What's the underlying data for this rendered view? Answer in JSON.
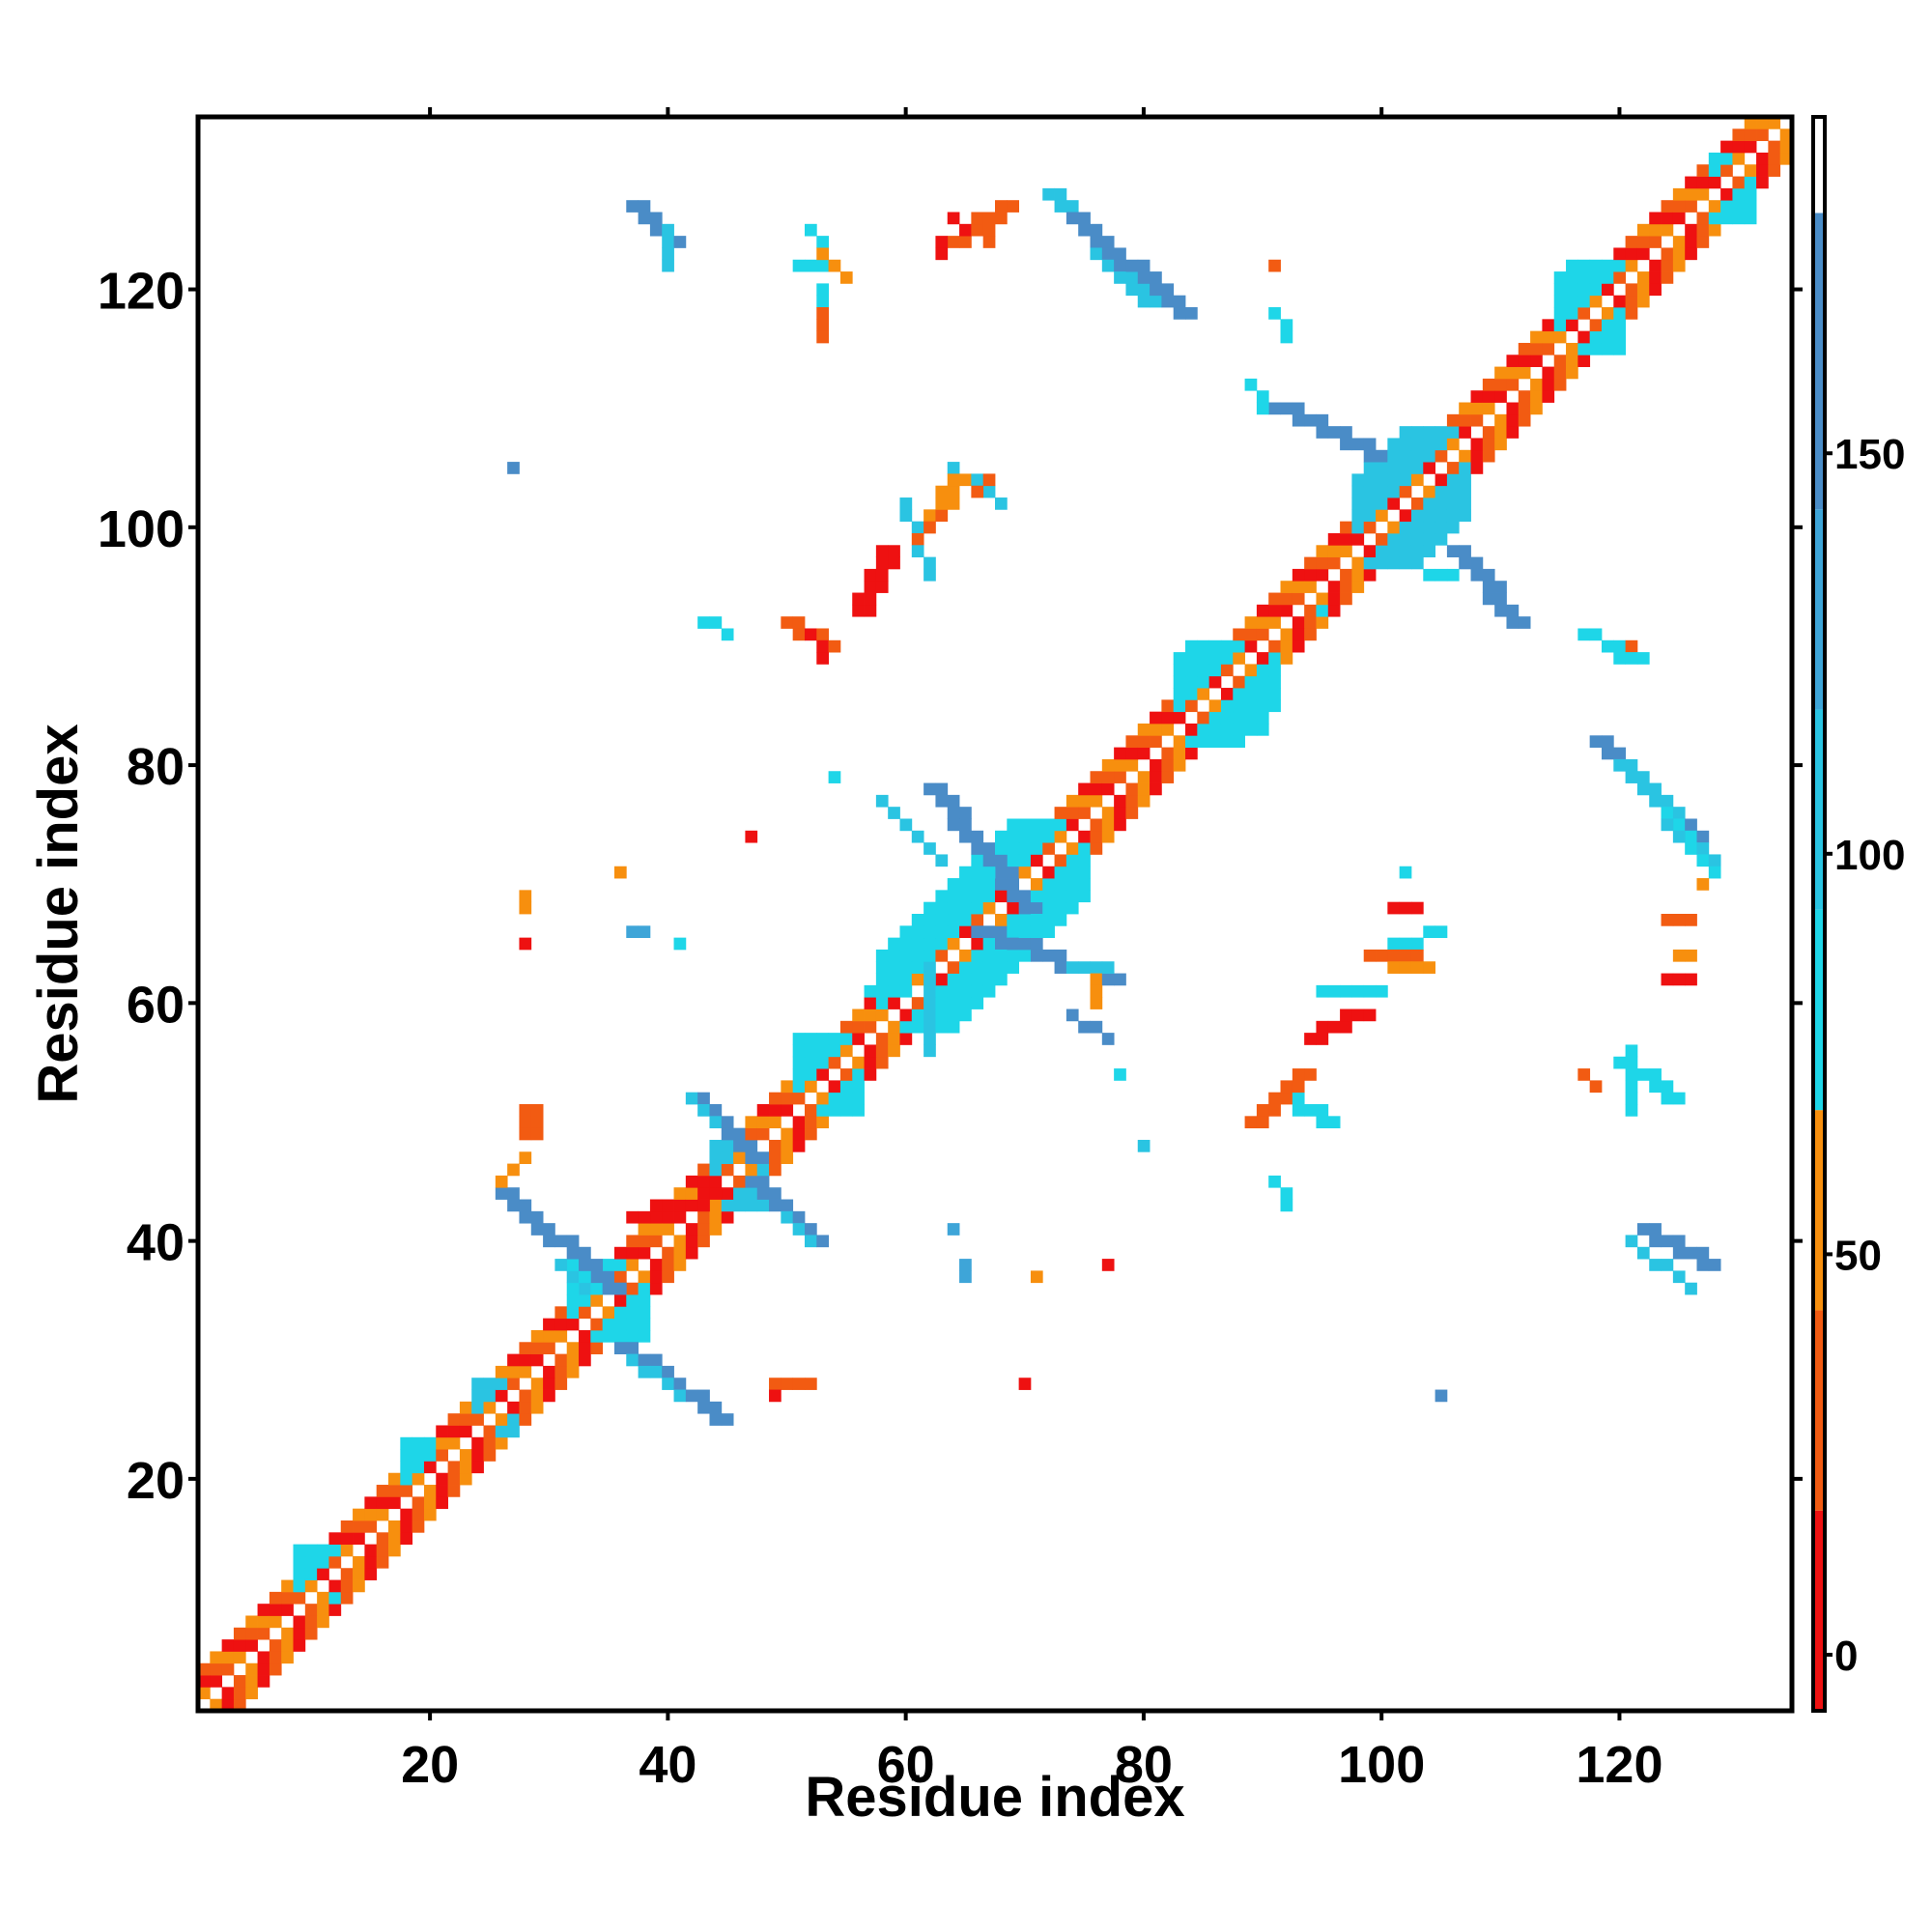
{
  "chart_data": {
    "type": "heatmap",
    "title": "",
    "xlabel": "Residue index",
    "ylabel": "Residue index",
    "xlim": [
      0.5,
      134.5
    ],
    "ylim": [
      0.5,
      134.5
    ],
    "x_ticks": [
      20,
      40,
      60,
      80,
      100,
      120
    ],
    "y_ticks": [
      20,
      40,
      60,
      80,
      100,
      120
    ],
    "colorbar": {
      "ticks": [
        0,
        50,
        100,
        150
      ],
      "range": [
        -7,
        192
      ],
      "segments": [
        {
          "from": -7,
          "to": 18,
          "color": "#ee1111"
        },
        {
          "from": 18,
          "to": 43,
          "color": "#f25b12"
        },
        {
          "from": 43,
          "to": 68,
          "color": "#f78f0e"
        },
        {
          "from": 68,
          "to": 93,
          "color": "#1ed6e8"
        },
        {
          "from": 93,
          "to": 118,
          "color": "#2ac4e2"
        },
        {
          "from": 118,
          "to": 143,
          "color": "#3ea5d8"
        },
        {
          "from": 143,
          "to": 180,
          "color": "#4a8cc7"
        },
        {
          "from": 180,
          "to": 192,
          "color": "#ffffff"
        }
      ]
    },
    "cell_colors": {
      "r": "#ee1111",
      "o": "#f25b12",
      "y": "#f78f0e",
      "c": "#1ed6e8",
      "s": "#2ac4e2",
      "b": "#4a8cc7",
      "m": "#3ea5d8"
    },
    "diagonal_pattern": {
      "offsets": [
        1,
        2,
        3
      ],
      "colors": [
        "o",
        "y",
        "r"
      ]
    },
    "cells": [
      {
        "c": "c",
        "x": [
          9,
          12
        ],
        "y": [
          10,
          14
        ]
      },
      {
        "c": "c",
        "x": [
          18,
          20
        ],
        "y": [
          20,
          23
        ]
      },
      {
        "c": "s",
        "x": [
          24,
          27
        ],
        "y": [
          24,
          28
        ]
      },
      {
        "c": "c",
        "x": [
          32,
          38
        ],
        "y": [
          32,
          38
        ]
      },
      {
        "c": "s",
        "x": [
          44,
          48
        ],
        "y": [
          43,
          48
        ]
      },
      {
        "c": "c",
        "x": [
          51,
          56
        ],
        "y": [
          51,
          57
        ]
      },
      {
        "c": "c",
        "x": [
          58,
          75
        ],
        "y": [
          58,
          75
        ]
      },
      {
        "c": "c",
        "x": [
          83,
          91
        ],
        "y": [
          82,
          90
        ]
      },
      {
        "c": "s",
        "x": [
          98,
          107
        ],
        "y": [
          97,
          108
        ]
      },
      {
        "c": "c",
        "x": [
          115,
          120
        ],
        "y": [
          115,
          122
        ]
      },
      {
        "c": "c",
        "x": [
          128,
          131
        ],
        "y": [
          126,
          131
        ]
      },
      {
        "c": "b",
        "line": [
          26,
          44,
          35,
          36
        ],
        "w": 2
      },
      {
        "c": "b",
        "line": [
          36,
          31,
          44,
          25
        ],
        "w": 2
      },
      {
        "c": "b",
        "line": [
          42,
          52,
          47,
          47
        ],
        "w": 2
      },
      {
        "c": "b",
        "line": [
          47,
          45,
          52,
          40
        ],
        "w": 2
      },
      {
        "c": "s",
        "line": [
          31,
          38,
          33,
          36
        ],
        "w": 1
      },
      {
        "c": "s",
        "line": [
          37,
          30,
          41,
          27
        ],
        "w": 1
      },
      {
        "c": "s",
        "line": [
          42,
          52,
          44,
          50
        ],
        "w": 1
      },
      {
        "c": "s",
        "line": [
          50,
          42,
          52,
          40
        ],
        "w": 1
      },
      {
        "c": "b",
        "line": [
          37,
          127,
          40,
          124
        ],
        "w": 2
      },
      {
        "c": "s",
        "line": [
          40,
          125,
          40,
          122
        ],
        "w": 1
      },
      {
        "c": "s",
        "line": [
          72,
          128,
          80,
          119
        ],
        "w": 2
      },
      {
        "c": "b",
        "line": [
          74,
          126,
          83,
          118
        ],
        "w": 2
      },
      {
        "c": "c",
        "line": [
          51,
          122,
          53,
          122
        ],
        "w": 2
      },
      {
        "c": "c",
        "line": [
          52,
          125,
          54,
          122
        ],
        "w": 1
      },
      {
        "c": "c",
        "line": [
          53,
          120,
          53,
          116
        ],
        "w": 1
      },
      {
        "c": "b",
        "line": [
          91,
          110,
          99,
          106
        ],
        "w": 2
      },
      {
        "c": "c",
        "line": [
          89,
          112,
          90,
          110
        ],
        "w": 1
      },
      {
        "c": "c",
        "line": [
          91,
          118,
          92,
          116
        ],
        "w": 1
      },
      {
        "c": "b",
        "line": [
          106,
          98,
          111,
          92
        ],
        "w": 2
      },
      {
        "c": "c",
        "line": [
          104,
          96,
          106,
          96
        ],
        "w": 1
      },
      {
        "c": "c",
        "line": [
          117,
          91,
          120,
          90
        ],
        "w": 1
      },
      {
        "c": "b",
        "line": [
          118,
          82,
          126,
          74
        ],
        "w": 2
      },
      {
        "c": "s",
        "line": [
          120,
          80,
          127,
          72
        ],
        "w": 2
      },
      {
        "c": "c",
        "line": [
          124,
          76,
          128,
          71
        ],
        "w": 1
      },
      {
        "c": "b",
        "line": [
          122,
          41,
          127,
          38
        ],
        "w": 2
      },
      {
        "c": "s",
        "line": [
          121,
          40,
          126,
          36
        ],
        "w": 1
      },
      {
        "c": "c",
        "line": [
          120,
          55,
          124,
          52
        ],
        "w": 2
      },
      {
        "c": "c",
        "line": [
          121,
          56,
          121,
          51
        ],
        "w": 1
      },
      {
        "c": "b",
        "line": [
          62,
          78,
          70,
          68
        ],
        "w": 2
      },
      {
        "c": "b",
        "line": [
          66,
          66,
          77,
          62
        ],
        "w": 2
      },
      {
        "c": "s",
        "line": [
          58,
          77,
          63,
          72
        ],
        "w": 1
      },
      {
        "c": "s",
        "line": [
          62,
          63,
          62,
          56
        ],
        "w": 1
      },
      {
        "c": "c",
        "line": [
          57,
          61,
          60,
          61
        ],
        "w": 1
      },
      {
        "c": "b",
        "line": [
          74,
          59,
          77,
          57
        ],
        "w": 1
      },
      {
        "c": "s",
        "line": [
          74,
          63,
          77,
          63
        ],
        "w": 1
      },
      {
        "c": "c",
        "line": [
          95,
          61,
          99,
          61
        ],
        "w": 2
      },
      {
        "c": "c",
        "line": [
          99,
          64,
          105,
          66
        ],
        "w": 1
      },
      {
        "c": "c",
        "line": [
          91,
          52,
          95,
          50
        ],
        "w": 2
      },
      {
        "c": "s",
        "line": [
          60,
          102,
          62,
          96
        ],
        "w": 1
      },
      {
        "c": "s",
        "line": [
          64,
          105,
          68,
          102
        ],
        "w": 1
      },
      {
        "c": "o",
        "line": [
          28,
          51,
          28,
          49
        ],
        "w": 2
      },
      {
        "c": "y",
        "line": [
          28,
          47,
          26,
          45
        ],
        "w": 1
      },
      {
        "c": "r",
        "line": [
          37,
          42,
          44,
          44
        ],
        "w": 2
      },
      {
        "c": "o",
        "line": [
          49,
          28,
          51,
          28
        ],
        "w": 2
      },
      {
        "c": "r",
        "line": [
          49,
          27,
          49,
          27
        ],
        "w": 1
      },
      {
        "c": "o",
        "line": [
          64,
          124,
          68,
          127
        ],
        "w": 2
      },
      {
        "c": "r",
        "line": [
          64,
          126,
          65,
          125
        ],
        "w": 1
      },
      {
        "c": "y",
        "line": [
          53,
          123,
          55,
          121
        ],
        "w": 1
      },
      {
        "c": "o",
        "line": [
          53,
          118,
          53,
          116
        ],
        "w": 1
      },
      {
        "c": "o",
        "line": [
          50,
          92,
          53,
          90
        ],
        "w": 2
      },
      {
        "c": "r",
        "line": [
          52,
          91,
          53,
          89
        ],
        "w": 1
      },
      {
        "c": "r",
        "line": [
          56,
          93,
          58,
          98
        ],
        "w": 2
      },
      {
        "c": "y",
        "line": [
          62,
          101,
          64,
          104
        ],
        "w": 2
      },
      {
        "c": "o",
        "line": [
          61,
          99,
          63,
          101
        ],
        "w": 1
      },
      {
        "c": "o",
        "line": [
          66,
          103,
          67,
          104
        ],
        "w": 1
      },
      {
        "c": "r",
        "line": [
          47,
          74,
          47,
          74
        ],
        "w": 1
      },
      {
        "c": "y",
        "line": [
          36,
          71,
          36,
          71
        ],
        "w": 1
      },
      {
        "c": "y",
        "line": [
          28,
          69,
          28,
          68
        ],
        "w": 1
      },
      {
        "c": "r",
        "line": [
          28,
          65,
          28,
          65
        ],
        "w": 1
      },
      {
        "c": "r",
        "line": [
          70,
          28,
          70,
          28
        ],
        "w": 1
      },
      {
        "c": "r",
        "line": [
          77,
          38,
          77,
          38
        ],
        "w": 1
      },
      {
        "c": "y",
        "line": [
          71,
          37,
          71,
          37
        ],
        "w": 1
      },
      {
        "c": "o",
        "line": [
          89,
          50,
          93,
          54
        ],
        "w": 2
      },
      {
        "c": "r",
        "line": [
          94,
          57,
          98,
          59
        ],
        "w": 2
      },
      {
        "c": "o",
        "line": [
          99,
          64,
          103,
          64
        ],
        "w": 1
      },
      {
        "c": "r",
        "line": [
          101,
          68,
          103,
          68
        ],
        "w": 1
      },
      {
        "c": "y",
        "line": [
          101,
          63,
          104,
          63
        ],
        "w": 1
      },
      {
        "c": "o",
        "line": [
          124,
          67,
          126,
          67
        ],
        "w": 1
      },
      {
        "c": "r",
        "line": [
          124,
          62,
          126,
          62
        ],
        "w": 1
      },
      {
        "c": "y",
        "line": [
          125,
          64,
          126,
          64
        ],
        "w": 1
      },
      {
        "c": "y",
        "line": [
          127,
          70,
          127,
          70
        ],
        "w": 1
      },
      {
        "c": "o",
        "line": [
          117,
          54,
          118,
          53
        ],
        "w": 1
      },
      {
        "c": "y",
        "line": [
          76,
          62,
          76,
          60
        ],
        "w": 1
      },
      {
        "c": "o",
        "line": [
          91,
          122,
          91,
          122
        ],
        "w": 1
      },
      {
        "c": "o",
        "line": [
          121,
          90,
          121,
          90
        ],
        "w": 1
      },
      {
        "c": "r",
        "line": [
          63,
          124,
          63,
          123
        ],
        "w": 1
      },
      {
        "c": "o",
        "line": [
          67,
          126,
          67,
          124
        ],
        "w": 1
      },
      {
        "c": "b",
        "line": [
          27,
          105,
          27,
          105
        ],
        "w": 1
      },
      {
        "c": "b",
        "line": [
          105,
          27,
          105,
          27
        ],
        "w": 1
      },
      {
        "c": "m",
        "line": [
          37,
          66,
          38,
          66
        ],
        "w": 1
      },
      {
        "c": "c",
        "line": [
          41,
          65,
          41,
          65
        ],
        "w": 1
      },
      {
        "c": "c",
        "line": [
          43,
          92,
          45,
          91
        ],
        "w": 1
      },
      {
        "c": "c",
        "line": [
          54,
          79,
          54,
          79
        ],
        "w": 1
      },
      {
        "c": "m",
        "line": [
          64,
          41,
          64,
          41
        ],
        "w": 1
      },
      {
        "c": "m",
        "line": [
          65,
          38,
          65,
          37
        ],
        "w": 1
      },
      {
        "c": "c",
        "line": [
          78,
          54,
          78,
          54
        ],
        "w": 1
      },
      {
        "c": "c",
        "line": [
          91,
          45,
          92,
          43
        ],
        "w": 1
      },
      {
        "c": "c",
        "line": [
          90,
          83,
          90,
          83
        ],
        "w": 1
      },
      {
        "c": "c",
        "line": [
          95,
          93,
          95,
          93
        ],
        "w": 1
      },
      {
        "c": "c",
        "line": [
          102,
          71,
          102,
          71
        ],
        "w": 1
      },
      {
        "c": "s",
        "line": [
          80,
          48,
          80,
          48
        ],
        "w": 1
      },
      {
        "c": "c",
        "line": [
          121,
          55,
          121,
          55
        ],
        "w": 1
      },
      {
        "c": "c",
        "line": [
          120,
          89,
          122,
          89
        ],
        "w": 1
      }
    ]
  }
}
